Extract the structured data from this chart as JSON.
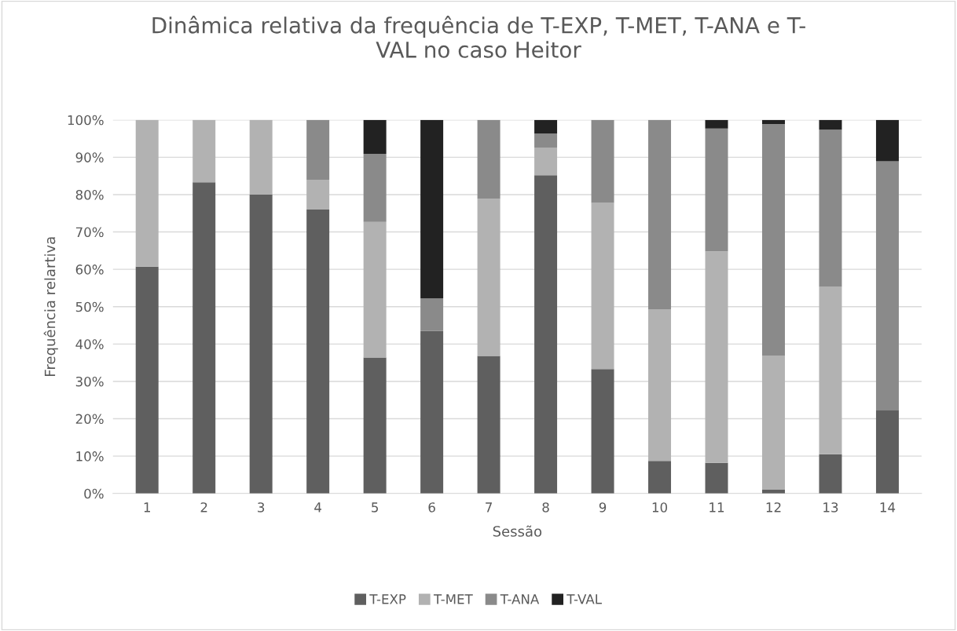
{
  "chart_data": {
    "type": "bar",
    "stacked": true,
    "title": "Dinâmica relativa da frequência de T-EXP, T-MET, T-ANA e T-\nVAL no caso Heitor",
    "xlabel": "Sessão",
    "ylabel": "Frequência relartiva",
    "categories": [
      "1",
      "2",
      "3",
      "4",
      "5",
      "6",
      "7",
      "8",
      "9",
      "10",
      "11",
      "12",
      "13",
      "14"
    ],
    "series": [
      {
        "name": "T-EXP",
        "color": "#5f5f5f",
        "values": [
          60.7,
          83.3,
          80,
          76,
          36.4,
          43.5,
          36.8,
          85.2,
          33.3,
          8.7,
          8.2,
          1,
          10.5,
          22.2
        ]
      },
      {
        "name": "T-MET",
        "color": "#b2b2b2",
        "values": [
          39.3,
          16.7,
          20,
          8,
          36.3,
          null,
          42.1,
          7.4,
          44.5,
          40.6,
          56.6,
          35.9,
          44.8,
          null
        ]
      },
      {
        "name": "T-ANA",
        "color": "#8a8a8a",
        "values": [
          null,
          null,
          null,
          16,
          18.2,
          8.7,
          21.1,
          3.7,
          22.2,
          50.7,
          32.9,
          62,
          42.1,
          66.7
        ]
      },
      {
        "name": "T-VAL",
        "color": "#222222",
        "values": [
          null,
          null,
          null,
          null,
          9.1,
          47.8,
          null,
          3.7,
          null,
          null,
          2.3,
          1.1,
          2.6,
          11.1
        ]
      }
    ],
    "ylim": [
      0,
      100
    ],
    "yticks": [
      {
        "value": 0,
        "label": "0%"
      },
      {
        "value": 10,
        "label": "10%"
      },
      {
        "value": 20,
        "label": "20%"
      },
      {
        "value": 30,
        "label": "30%"
      },
      {
        "value": 40,
        "label": "40%"
      },
      {
        "value": 50,
        "label": "50%"
      },
      {
        "value": 60,
        "label": "60%"
      },
      {
        "value": 70,
        "label": "70%"
      },
      {
        "value": 80,
        "label": "80%"
      },
      {
        "value": 90,
        "label": "90%"
      },
      {
        "value": 100,
        "label": "100%"
      }
    ],
    "grid": "y",
    "legend": "bottom"
  }
}
